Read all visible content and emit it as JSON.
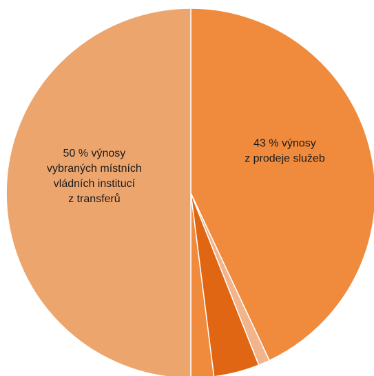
{
  "chart_data": {
    "type": "pie",
    "start_angle_deg": 0,
    "direction": "clockwise",
    "slices": [
      {
        "value": 43,
        "color": "#F08A3C",
        "label_lines": [
          "43 % výnosy",
          "z prodeje služeb"
        ]
      },
      {
        "value": 1,
        "color": "#F2B48A",
        "label_lines": []
      },
      {
        "value": 4,
        "color": "#E06614",
        "label_lines": []
      },
      {
        "value": 2,
        "color": "#F08A3C",
        "label_lines": []
      },
      {
        "value": 50,
        "color": "#EDA56E",
        "label_lines": [
          "50 % výnosy",
          "vybraných místních",
          "vládních institucí",
          "z transferů"
        ]
      }
    ],
    "slice_border_color": "#ffffff"
  }
}
